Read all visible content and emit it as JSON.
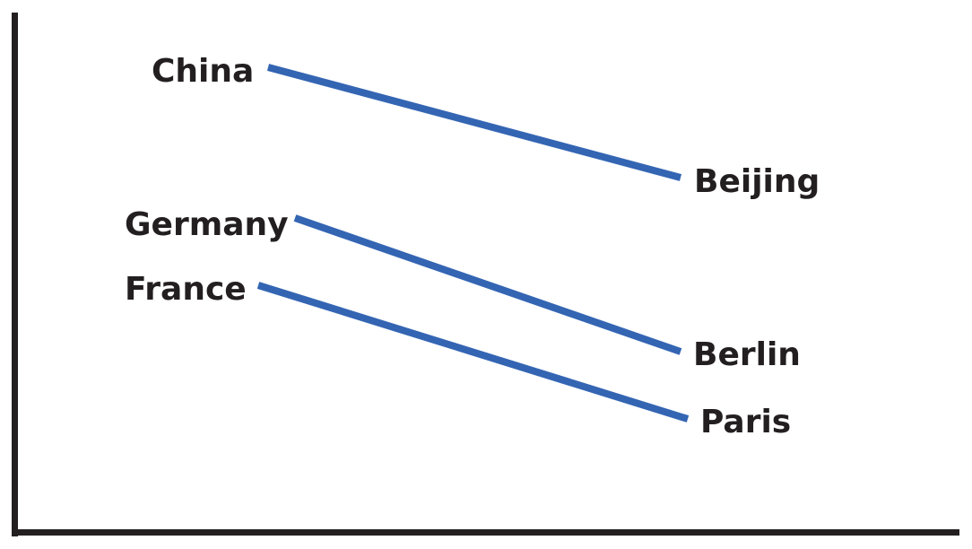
{
  "colors": {
    "line": "#3465b3",
    "axis": "#231f20",
    "text": "#231f20"
  },
  "pairs": [
    {
      "country": "China",
      "capital": "Beijing"
    },
    {
      "country": "Germany",
      "capital": "Berlin"
    },
    {
      "country": "France",
      "capital": "Paris"
    }
  ]
}
